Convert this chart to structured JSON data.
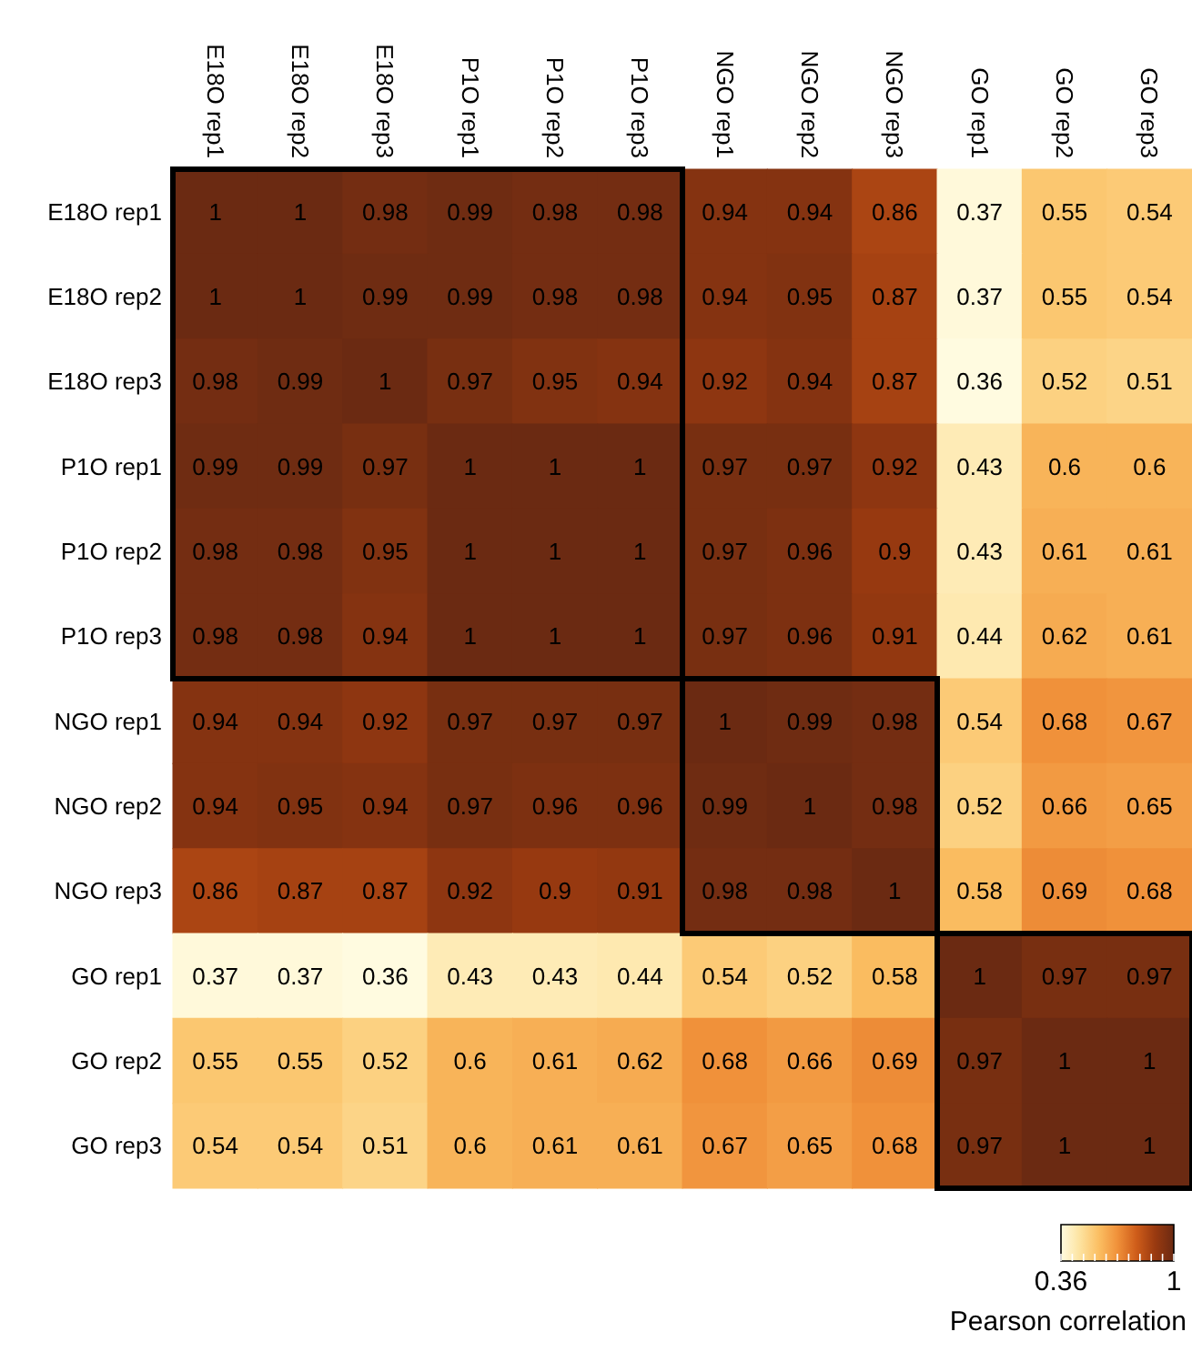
{
  "chart_data": {
    "type": "heatmap",
    "clabel": "Pearson correlation",
    "clim": [
      0.36,
      1
    ],
    "cticks": [
      0.36,
      1
    ],
    "categories": [
      "E18O rep1",
      "E18O rep2",
      "E18O rep3",
      "P1O rep1",
      "P1O rep2",
      "P1O rep3",
      "NGO rep1",
      "NGO rep2",
      "NGO rep3",
      "GO rep1",
      "GO rep2",
      "GO rep3"
    ],
    "y_categories": [
      "E18O rep1",
      "E18O rep2",
      "E18O rep3",
      "P1O rep1",
      "P1O rep2",
      "P1O rep3",
      "NGO rep1",
      "NGO rep2",
      "NGO rep3",
      "GO rep1",
      "GO rep2",
      "GO rep3"
    ],
    "cells": [
      [
        1,
        1,
        0.98,
        0.99,
        0.98,
        0.98,
        0.94,
        0.94,
        0.86,
        0.37,
        0.55,
        0.54
      ],
      [
        1,
        1,
        0.99,
        0.99,
        0.98,
        0.98,
        0.94,
        0.95,
        0.87,
        0.37,
        0.55,
        0.54
      ],
      [
        0.98,
        0.99,
        1,
        0.97,
        0.95,
        0.94,
        0.92,
        0.94,
        0.87,
        0.36,
        0.52,
        0.51
      ],
      [
        0.99,
        0.99,
        0.97,
        1,
        1,
        1,
        0.97,
        0.97,
        0.92,
        0.43,
        0.6,
        0.6
      ],
      [
        0.98,
        0.98,
        0.95,
        1,
        1,
        1,
        0.97,
        0.96,
        0.9,
        0.43,
        0.61,
        0.61
      ],
      [
        0.98,
        0.98,
        0.94,
        1,
        1,
        1,
        0.97,
        0.96,
        0.91,
        0.44,
        0.62,
        0.61
      ],
      [
        0.94,
        0.94,
        0.92,
        0.97,
        0.97,
        0.97,
        1,
        0.99,
        0.98,
        0.54,
        0.68,
        0.67
      ],
      [
        0.94,
        0.95,
        0.94,
        0.97,
        0.96,
        0.96,
        0.99,
        1,
        0.98,
        0.52,
        0.66,
        0.65
      ],
      [
        0.86,
        0.87,
        0.87,
        0.92,
        0.9,
        0.91,
        0.98,
        0.98,
        1,
        0.58,
        0.69,
        0.68
      ],
      [
        0.37,
        0.37,
        0.36,
        0.43,
        0.43,
        0.44,
        0.54,
        0.52,
        0.58,
        1,
        0.97,
        0.97
      ],
      [
        0.55,
        0.55,
        0.52,
        0.6,
        0.61,
        0.62,
        0.68,
        0.66,
        0.69,
        0.97,
        1,
        1
      ],
      [
        0.54,
        0.54,
        0.51,
        0.6,
        0.61,
        0.61,
        0.67,
        0.65,
        0.68,
        0.97,
        1,
        1
      ]
    ],
    "data_labels": true
  }
}
